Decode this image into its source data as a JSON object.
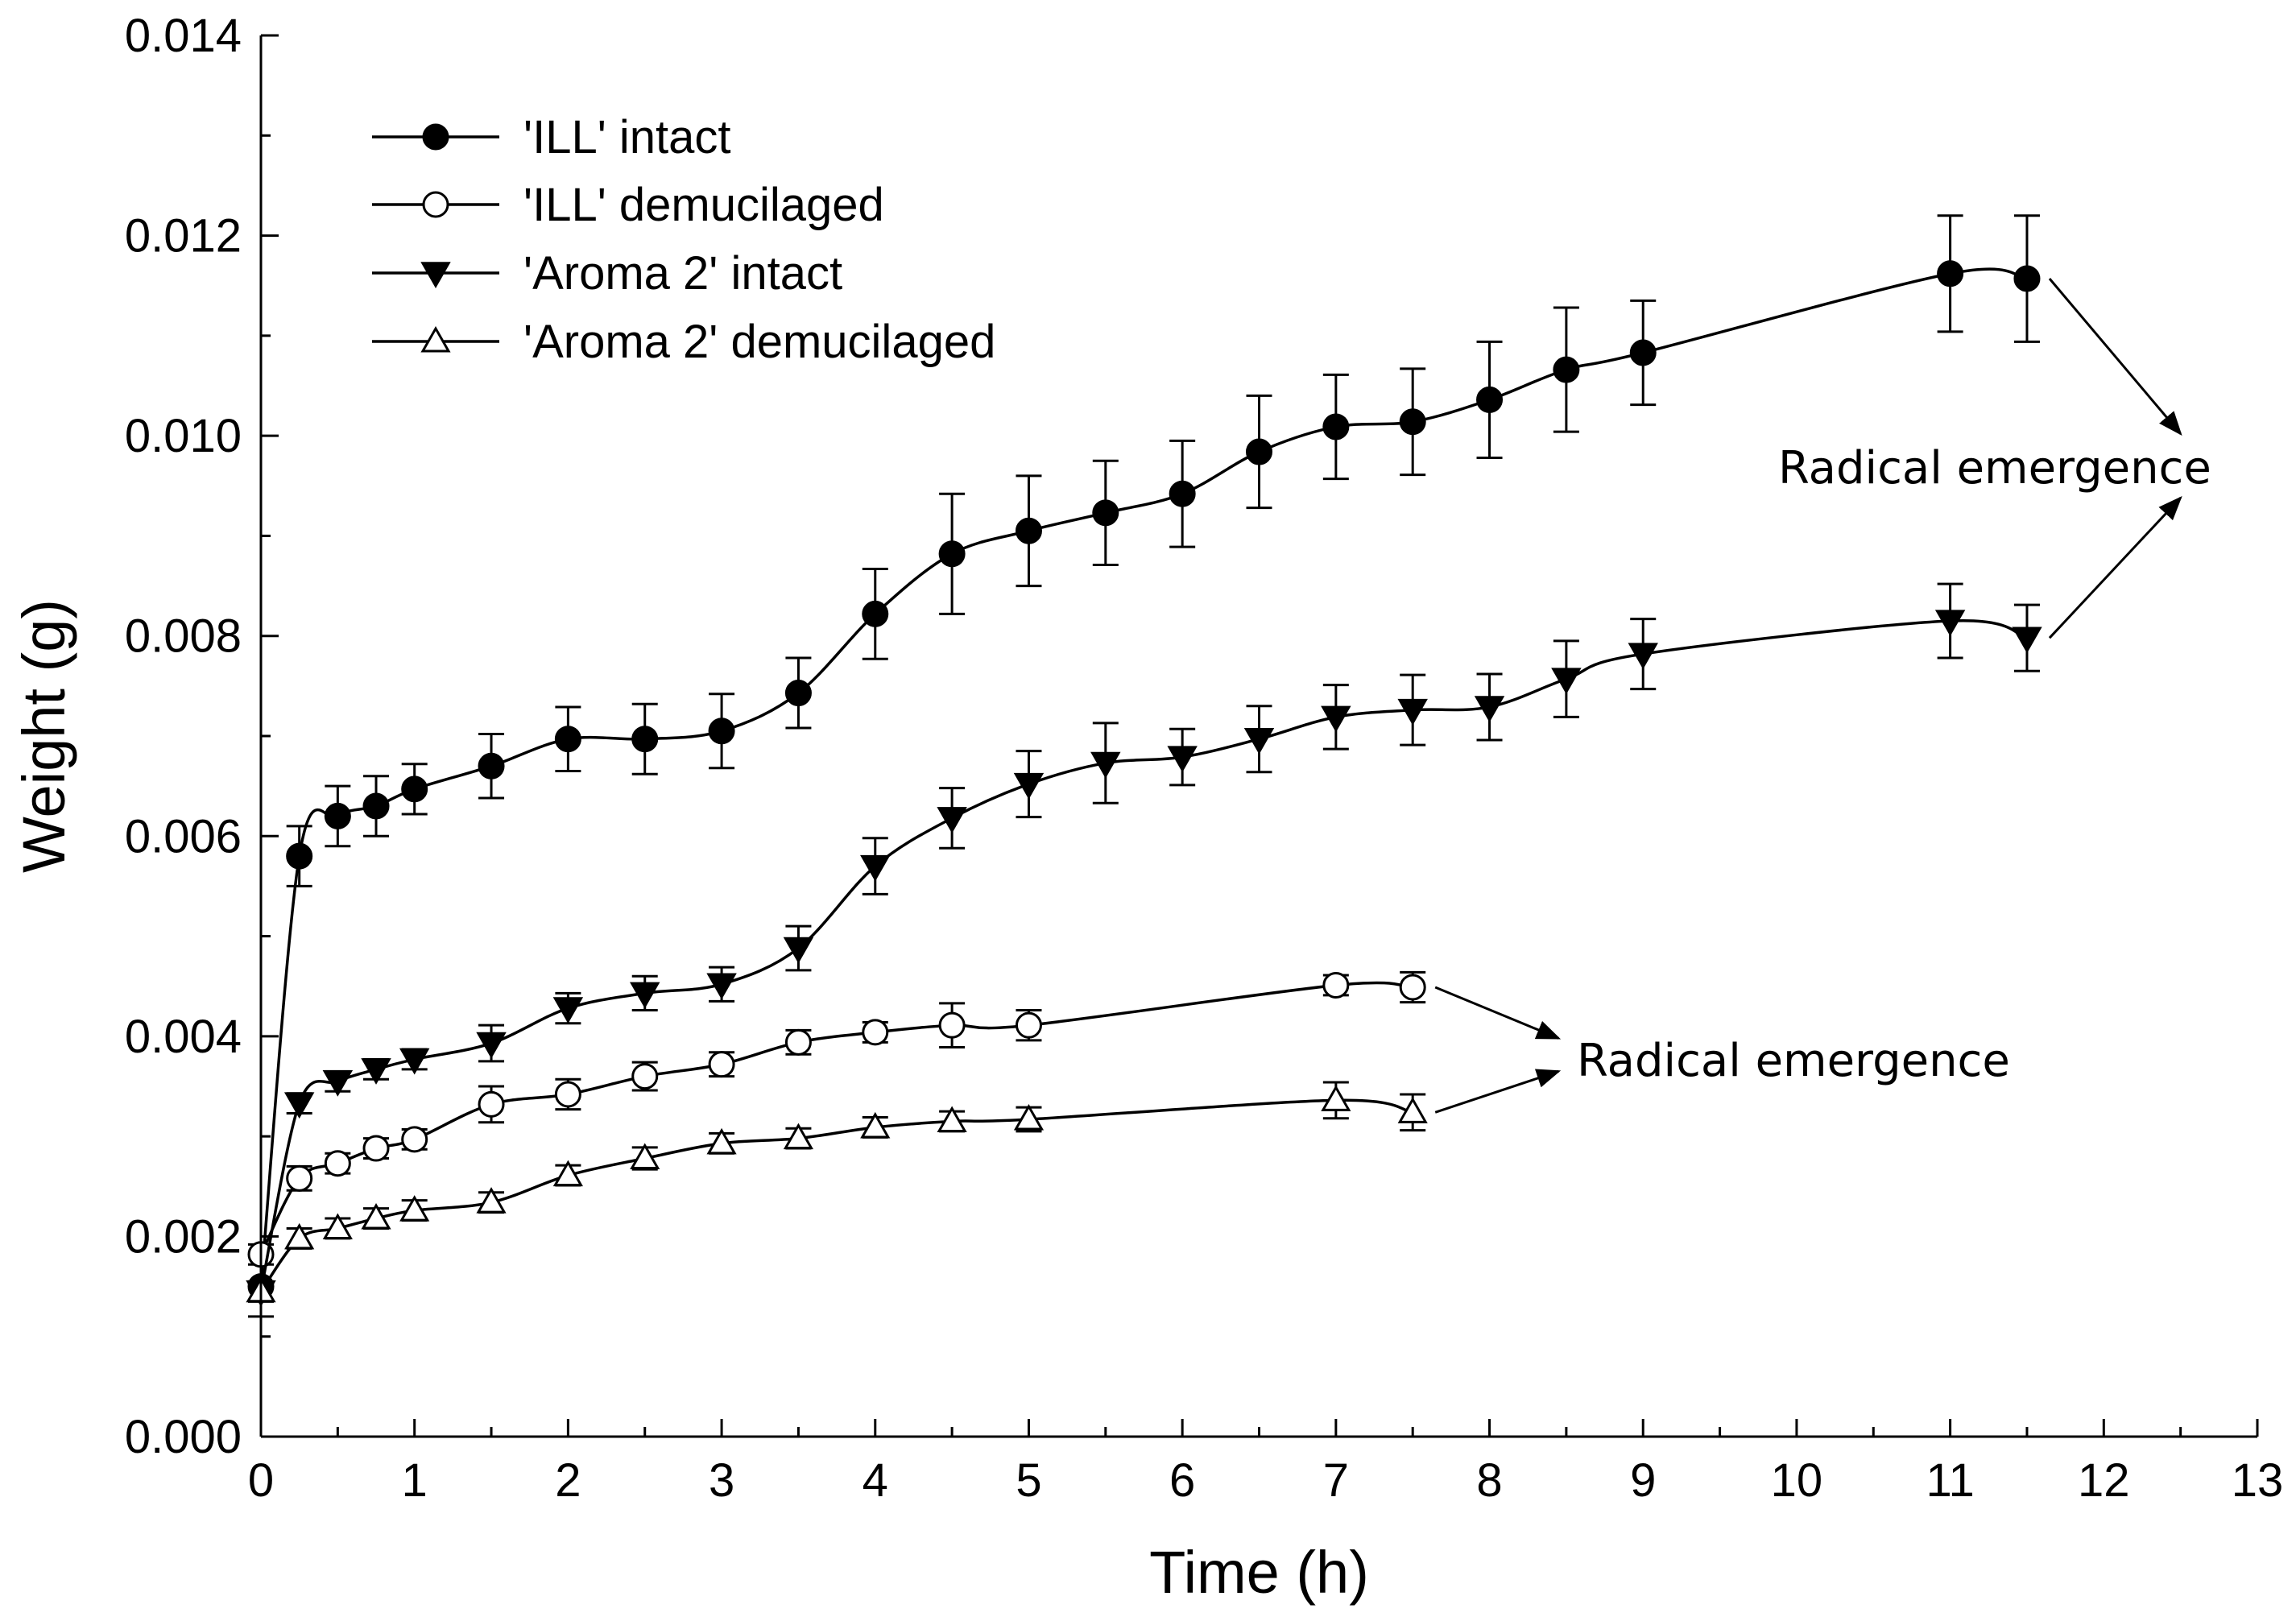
{
  "chart_data": {
    "type": "line",
    "title": "",
    "xlabel": "Time (h)",
    "ylabel": "Weight (g)",
    "xlim": [
      0,
      13
    ],
    "ylim": [
      0,
      0.014
    ],
    "xticks": [
      0,
      1,
      2,
      3,
      4,
      5,
      6,
      7,
      8,
      9,
      10,
      11,
      12,
      13
    ],
    "xtick_labels": [
      "0",
      "1",
      "2",
      "3",
      "4",
      "5",
      "6",
      "7",
      "8",
      "9",
      "10",
      "11",
      "12",
      "13"
    ],
    "yticks": [
      0,
      0.002,
      0.004,
      0.006,
      0.008,
      0.01,
      0.012,
      0.014
    ],
    "ytick_labels": [
      "0.000",
      "0.002",
      "0.004",
      "0.006",
      "0.008",
      "0.010",
      "0.012",
      "0.014"
    ],
    "grid": false,
    "legend_position": "top-left",
    "series": [
      {
        "name": "'ILL' intact",
        "marker": "circle-filled",
        "x": [
          0,
          0.25,
          0.5,
          0.75,
          1,
          1.5,
          2,
          2.5,
          3,
          3.5,
          4,
          4.5,
          5,
          5.5,
          6,
          6.5,
          7,
          7.5,
          8,
          8.5,
          9,
          11,
          11.5
        ],
        "y": [
          0.0015,
          0.0058,
          0.0062,
          0.0063,
          0.00647,
          0.0067,
          0.00697,
          0.00697,
          0.00705,
          0.00743,
          0.00822,
          0.00882,
          0.00905,
          0.00923,
          0.00942,
          0.00984,
          0.01009,
          0.01014,
          0.01036,
          0.01066,
          0.01083,
          0.01162,
          0.01157
        ],
        "err": [
          0.0003,
          0.0003,
          0.0003,
          0.0003,
          0.00025,
          0.00032,
          0.00032,
          0.00035,
          0.00037,
          0.00035,
          0.00045,
          0.0006,
          0.00055,
          0.00052,
          0.00053,
          0.00056,
          0.00052,
          0.00053,
          0.00058,
          0.00062,
          0.00052,
          0.00058,
          0.00063
        ]
      },
      {
        "name": "'ILL' demucilaged",
        "marker": "circle-open",
        "x": [
          0,
          0.25,
          0.5,
          0.75,
          1,
          1.5,
          2,
          2.5,
          3,
          3.5,
          4,
          4.5,
          5,
          7,
          7.5
        ],
        "y": [
          0.00182,
          0.00258,
          0.00273,
          0.00288,
          0.00297,
          0.00332,
          0.00342,
          0.0036,
          0.00372,
          0.00394,
          0.00404,
          0.00411,
          0.00411,
          0.00451,
          0.00449
        ],
        "err": [
          0.0001,
          0.00012,
          0.0001,
          0.0001,
          0.0001,
          0.00018,
          0.00015,
          0.00014,
          0.00012,
          0.00012,
          0.0001,
          0.00022,
          0.00015,
          0.0001,
          0.00015
        ]
      },
      {
        "name": "'Aroma 2' intact",
        "marker": "triangle-down-filled",
        "x": [
          0,
          0.25,
          0.5,
          0.75,
          1,
          1.5,
          2,
          2.5,
          3,
          3.5,
          4,
          4.5,
          5,
          5.5,
          6,
          6.5,
          7,
          7.5,
          8,
          8.5,
          9,
          11,
          11.5
        ],
        "y": [
          0.00145,
          0.00333,
          0.00355,
          0.00367,
          0.00377,
          0.00393,
          0.00428,
          0.00443,
          0.00452,
          0.00488,
          0.0057,
          0.00618,
          0.00652,
          0.00673,
          0.00679,
          0.00697,
          0.00719,
          0.00726,
          0.00729,
          0.00757,
          0.00782,
          0.00815,
          0.00798
        ],
        "err": [
          0.0001,
          0.0001,
          0.0001,
          0.0001,
          0.0001,
          0.00018,
          0.00015,
          0.00017,
          0.00017,
          0.00022,
          0.00028,
          0.0003,
          0.00033,
          0.0004,
          0.00028,
          0.00033,
          0.00032,
          0.00035,
          0.00033,
          0.00038,
          0.00035,
          0.00037,
          0.00033
        ]
      },
      {
        "name": "'Aroma 2' demucilaged",
        "marker": "triangle-up-open",
        "x": [
          0,
          0.25,
          0.5,
          0.75,
          1,
          1.5,
          2,
          2.5,
          3,
          3.5,
          4,
          4.5,
          5,
          7,
          7.5
        ],
        "y": [
          0.00145,
          0.00198,
          0.00208,
          0.00218,
          0.00226,
          0.00234,
          0.00261,
          0.00278,
          0.00293,
          0.00298,
          0.00309,
          0.00315,
          0.00317,
          0.00336,
          0.00324
        ],
        "err": [
          0.0001,
          0.0001,
          0.0001,
          0.0001,
          0.0001,
          0.0001,
          0.0001,
          0.00011,
          0.0001,
          0.0001,
          0.0001,
          0.0001,
          0.00012,
          0.00018,
          0.00018
        ]
      }
    ],
    "annotations": [
      {
        "text": "Radical emergence",
        "from_series": [
          "'ILL' intact",
          "'Aroma 2' intact"
        ],
        "arrow_to": [
          [
            12.5,
            0.01002
          ],
          [
            12.5,
            0.00938
          ]
        ]
      },
      {
        "text": "Radical emergence",
        "from_series": [
          "'ILL' demucilaged",
          "'Aroma 2' demucilaged"
        ],
        "arrow_to": [
          [
            8.45,
            0.00398
          ],
          [
            8.45,
            0.00365
          ]
        ]
      }
    ]
  }
}
